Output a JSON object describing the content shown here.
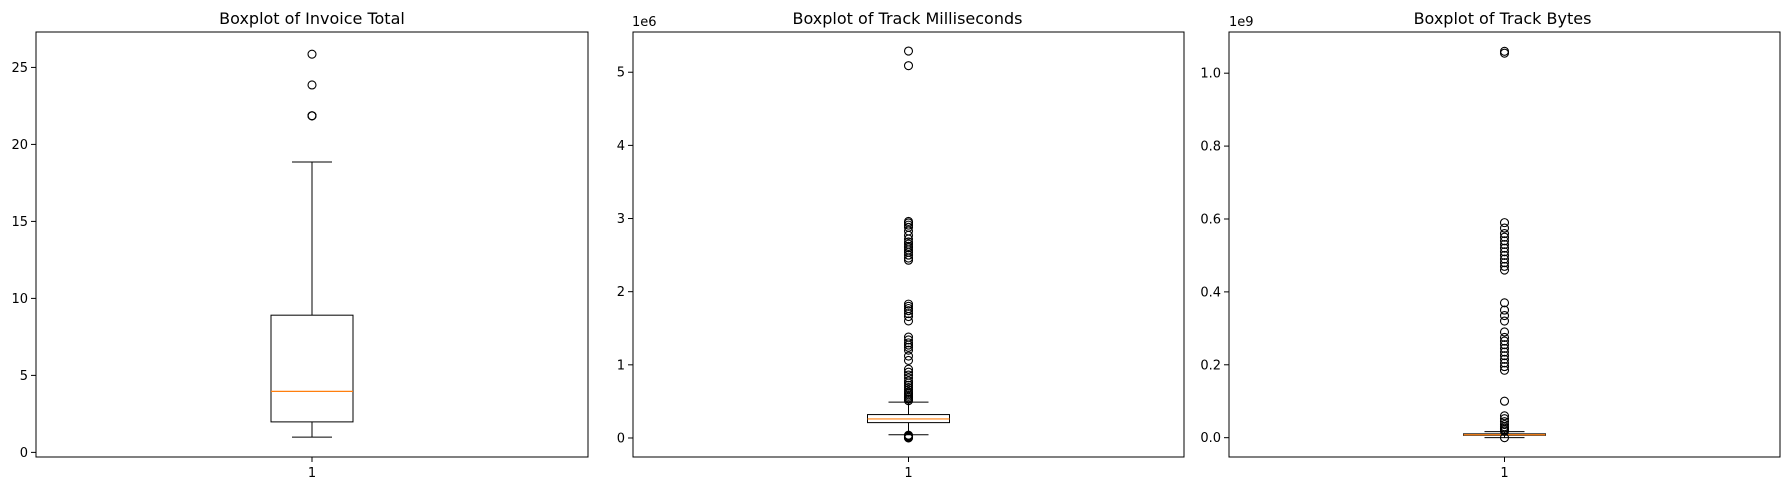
{
  "chart_data": [
    {
      "type": "box",
      "title": "Boxplot of Invoice Total",
      "offset_text": "",
      "categories": [
        "1"
      ],
      "ylim": [
        -0.3,
        27.3
      ],
      "yticks": [
        0,
        5,
        10,
        15,
        20,
        25
      ],
      "ytick_labels": [
        "0",
        "5",
        "10",
        "15",
        "20",
        "25"
      ],
      "box": {
        "whisker_low": 0.99,
        "q1": 1.98,
        "median": 3.96,
        "q3": 8.91,
        "whisker_high": 18.86
      },
      "outliers": [
        21.86,
        21.86,
        21.86,
        23.86,
        25.86
      ],
      "grid": false
    },
    {
      "type": "box",
      "title": "Boxplot of Track Milliseconds",
      "offset_text": "1e6",
      "categories": [
        "1"
      ],
      "ylim": [
        -0.26,
        5.55
      ],
      "yticks": [
        0,
        1,
        2,
        3,
        4,
        5
      ],
      "ytick_labels": [
        "0",
        "1",
        "2",
        "3",
        "4",
        "5"
      ],
      "box": {
        "whisker_low": 0.045,
        "q1": 0.21,
        "median": 0.26,
        "q3": 0.32,
        "whisker_high": 0.49
      },
      "outliers": [
        0.001,
        0.004,
        0.01,
        0.018,
        0.025,
        0.03,
        0.038,
        0.51,
        0.53,
        0.55,
        0.57,
        0.59,
        0.61,
        0.63,
        0.66,
        0.69,
        0.72,
        0.75,
        0.78,
        0.82,
        0.86,
        0.9,
        0.94,
        1.06,
        1.12,
        1.2,
        1.24,
        1.27,
        1.3,
        1.34,
        1.38,
        1.6,
        1.66,
        1.7,
        1.74,
        1.77,
        1.8,
        1.83,
        2.43,
        2.46,
        2.5,
        2.54,
        2.57,
        2.6,
        2.62,
        2.65,
        2.68,
        2.72,
        2.77,
        2.83,
        2.88,
        2.91,
        2.94,
        2.96,
        5.09,
        5.29
      ],
      "grid": false
    },
    {
      "type": "box",
      "title": "Boxplot of Track Bytes",
      "offset_text": "1e9",
      "categories": [
        "1"
      ],
      "ylim": [
        -0.053,
        1.113
      ],
      "yticks": [
        0,
        0.2,
        0.4,
        0.6,
        0.8,
        1.0
      ],
      "ytick_labels": [
        "0.0",
        "0.2",
        "0.4",
        "0.6",
        "0.8",
        "1.0"
      ],
      "box": {
        "whisker_low": 0.0001,
        "q1": 0.0065,
        "median": 0.008,
        "q3": 0.0105,
        "whisker_high": 0.0165
      },
      "outliers": [
        0.0,
        0.018,
        0.022,
        0.026,
        0.03,
        0.036,
        0.044,
        0.052,
        0.06,
        0.1,
        0.185,
        0.195,
        0.205,
        0.215,
        0.225,
        0.235,
        0.245,
        0.255,
        0.265,
        0.275,
        0.29,
        0.32,
        0.335,
        0.35,
        0.37,
        0.46,
        0.47,
        0.48,
        0.49,
        0.5,
        0.51,
        0.52,
        0.53,
        0.54,
        0.55,
        0.56,
        0.575,
        0.59,
        1.055,
        1.06
      ],
      "grid": false
    }
  ],
  "style": {
    "box_color": "#000000",
    "median_color": "#ff7f0e",
    "outlier_color": "#000000"
  }
}
